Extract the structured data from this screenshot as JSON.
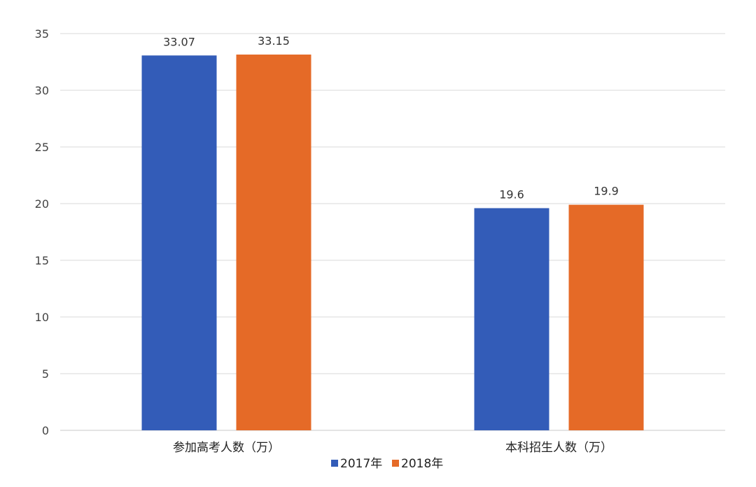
{
  "chart_data": {
    "type": "bar",
    "categories": [
      "参加高考人数（万）",
      "本科招生人数（万）"
    ],
    "series": [
      {
        "name": "2017年",
        "values": [
          33.07,
          19.6
        ],
        "color": "#335cb8"
      },
      {
        "name": "2018年",
        "values": [
          33.15,
          19.9
        ],
        "color": "#e56a27"
      }
    ],
    "ylim": [
      0,
      35
    ],
    "yticks": [
      0,
      5,
      10,
      15,
      20,
      25,
      30,
      35
    ],
    "grid": true,
    "legend_position": "bottom",
    "data_labels": [
      [
        "33.07",
        "19.6"
      ],
      [
        "33.15",
        "19.9"
      ]
    ]
  }
}
